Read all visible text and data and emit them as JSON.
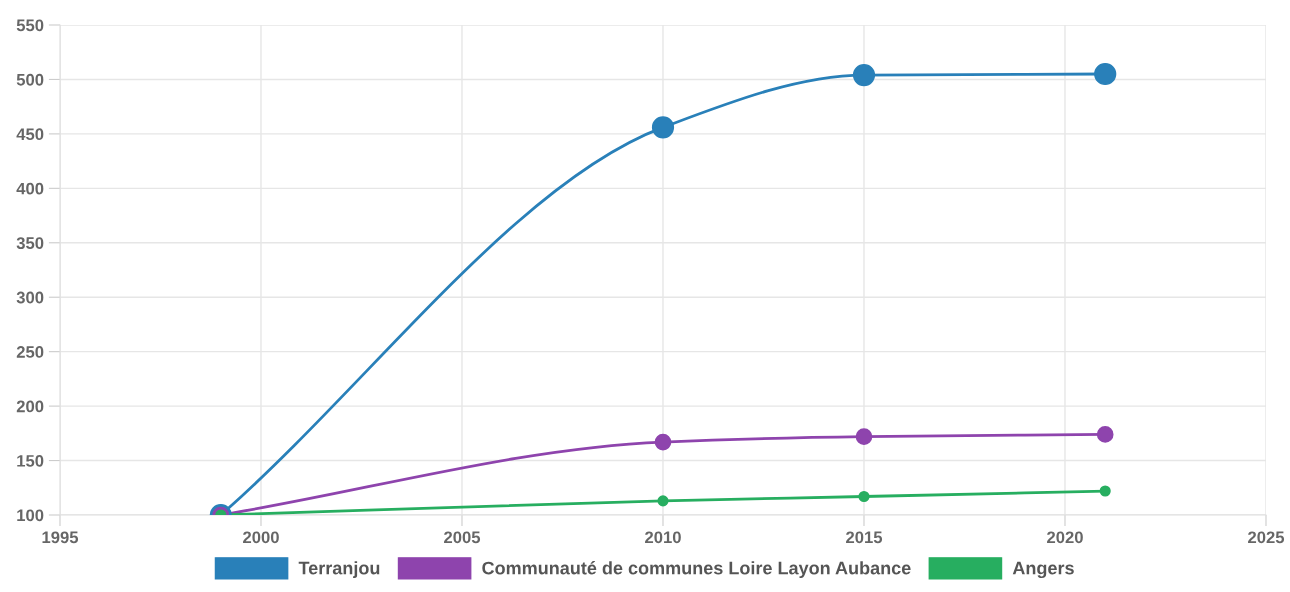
{
  "chart_data": {
    "type": "line",
    "x": [
      1999,
      2010,
      2015,
      2021
    ],
    "series": [
      {
        "name": "Terranjou",
        "color": "#2980b9",
        "values": [
          100,
          456,
          504,
          505
        ]
      },
      {
        "name": "Communauté de communes Loire Layon Aubance",
        "color": "#8e44ad",
        "values": [
          100,
          167,
          172,
          174
        ]
      },
      {
        "name": "Angers",
        "color": "#27ae60",
        "values": [
          100,
          113,
          117,
          122
        ]
      }
    ],
    "xlim": [
      1995,
      2025
    ],
    "xticks": [
      1995,
      2000,
      2005,
      2010,
      2015,
      2020,
      2025
    ],
    "ylim": [
      100,
      550
    ],
    "yticks": [
      100,
      150,
      200,
      250,
      300,
      350,
      400,
      450,
      500,
      550
    ],
    "grid": true,
    "legend": "bottom",
    "marker": "circle"
  }
}
